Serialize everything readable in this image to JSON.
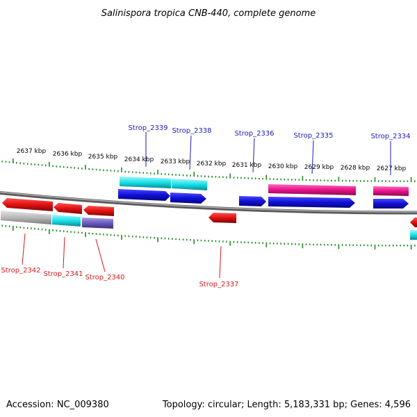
{
  "title": "Salinispora tropica CNB-440, complete genome",
  "footer": {
    "accession": "Accession: NC_009380",
    "summary": "Topology: circular; Length: 5,183,331 bp; Genes: 4,596"
  },
  "scale_labels": [
    "2637 kbp",
    "2636 kbp",
    "2635 kbp",
    "2634 kbp",
    "2633 kbp",
    "2632 kbp",
    "2631 kbp",
    "2630 kbp",
    "2629 kbp",
    "2628 kbp",
    "2627 kbp"
  ],
  "genes_top": [
    "Strop_2339",
    "Strop_2338",
    "Strop_2336",
    "Strop_2335",
    "Strop_2334"
  ],
  "genes_bottom": [
    "Strop_2342",
    "Strop_2341",
    "Strop_2340",
    "Strop_2337"
  ],
  "colors": {
    "forward_cds": "#1010d8",
    "reverse_cds": "#e01010",
    "rna_pink": "#e8128a",
    "cyan": "#18e0e8",
    "grey": "#b8b8b8",
    "purple": "#6a5ab8",
    "backbone": "#808080",
    "ticks": "#1e8a1e",
    "label_blue": "#1a1ab8",
    "label_red": "#d11a1a"
  }
}
